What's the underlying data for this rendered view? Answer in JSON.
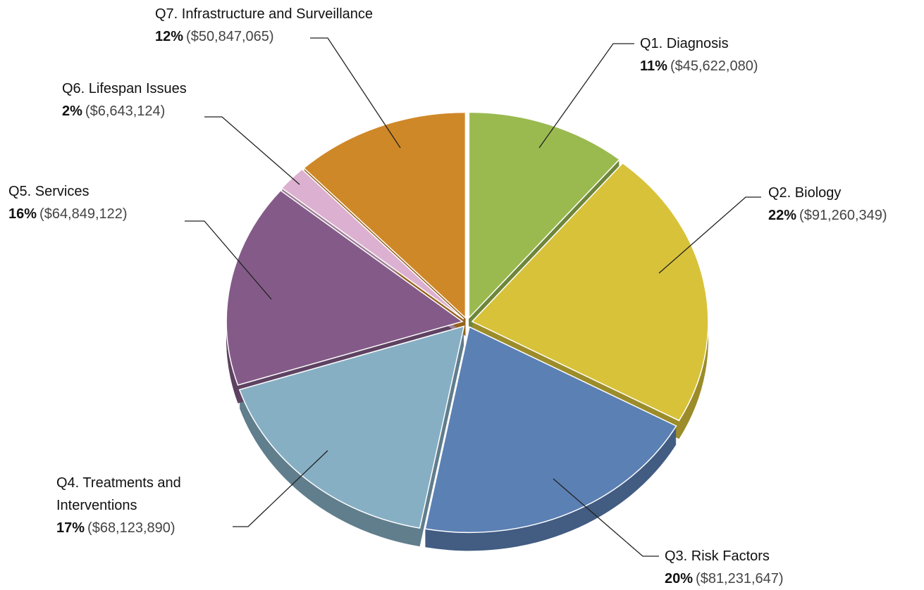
{
  "chart_data": {
    "type": "pie",
    "categories": [
      "Q1. Diagnosis",
      "Q2. Biology",
      "Q3. Risk Factors",
      "Q4. Treatments and Interventions",
      "Q5. Services",
      "Q6. Lifespan Issues",
      "Q7. Infrastructure and Surveillance"
    ],
    "values": [
      11,
      22,
      20,
      17,
      16,
      2,
      12
    ],
    "value_labels": [
      "11%",
      "22%",
      "20%",
      "17%",
      "16%",
      "2%",
      "12%"
    ],
    "amount_labels": [
      "($45,622,080)",
      "($91,260,349)",
      "($81,231,647)",
      "($68,123,890)",
      "($64,849,122)",
      "($6,643,124)",
      "($50,847,065)"
    ],
    "colors": [
      "#9aba50",
      "#d8c23a",
      "#5b80b4",
      "#87afc4",
      "#845b88",
      "#dcb0d0",
      "#cf8828"
    ]
  }
}
